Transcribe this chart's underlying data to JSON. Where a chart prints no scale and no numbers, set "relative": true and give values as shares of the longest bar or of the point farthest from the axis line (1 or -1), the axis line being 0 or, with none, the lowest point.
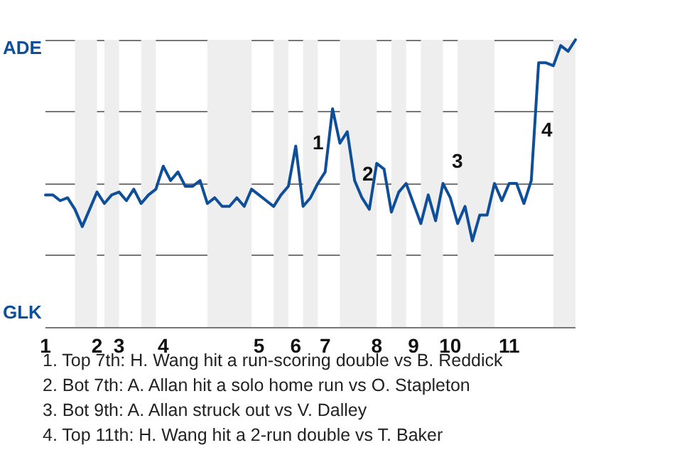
{
  "chart_data": {
    "type": "line",
    "relative": true,
    "categories": [
      "1",
      null,
      null,
      null,
      null,
      null,
      null,
      "2",
      null,
      null,
      "3",
      null,
      null,
      null,
      null,
      null,
      "4",
      null,
      null,
      null,
      null,
      null,
      null,
      null,
      null,
      null,
      null,
      null,
      null,
      "5",
      null,
      null,
      null,
      null,
      "6",
      null,
      null,
      null,
      "7",
      null,
      null,
      null,
      null,
      null,
      null,
      "8",
      null,
      null,
      null,
      null,
      "9",
      null,
      null,
      null,
      null,
      "10",
      null,
      null,
      null,
      null,
      null,
      null,
      null,
      "11",
      null,
      null,
      null,
      null,
      null,
      null,
      null,
      null,
      null
    ],
    "series": [
      {
        "color": "#0f4f9a",
        "values": [
          0.46,
          0.46,
          0.44,
          0.45,
          0.41,
          0.35,
          0.41,
          0.47,
          0.43,
          0.46,
          0.47,
          0.44,
          0.48,
          0.43,
          0.46,
          0.48,
          0.56,
          0.51,
          0.54,
          0.49,
          0.49,
          0.51,
          0.43,
          0.45,
          0.42,
          0.42,
          0.45,
          0.42,
          0.48,
          0.46,
          0.44,
          0.42,
          0.46,
          0.49,
          0.63,
          0.42,
          0.45,
          0.5,
          0.54,
          0.76,
          0.64,
          0.68,
          0.51,
          0.45,
          0.41,
          0.57,
          0.55,
          0.4,
          0.47,
          0.5,
          0.43,
          0.36,
          0.46,
          0.37,
          0.5,
          0.45,
          0.36,
          0.42,
          0.3,
          0.39,
          0.39,
          0.5,
          0.44,
          0.5,
          0.5,
          0.43,
          0.51,
          0.92,
          0.92,
          0.91,
          0.98,
          0.96,
          1.0
        ]
      }
    ],
    "grid": "y",
    "annotations": [
      "ADE",
      "GLK",
      "1",
      "2",
      "3",
      "4",
      "1. Top 7th: H. Wang hit a run-scoring double vs B. Reddick",
      "2. Bot 7th: A. Allan hit a solo home run vs O. Stapleton",
      "3. Bot 9th: A. Allan struck out vs V. Dalley",
      "4. Top 11th: H. Wang hit a 2-run double vs T. Baker"
    ],
    "marker": "none",
    "line_style": "solid"
  }
}
